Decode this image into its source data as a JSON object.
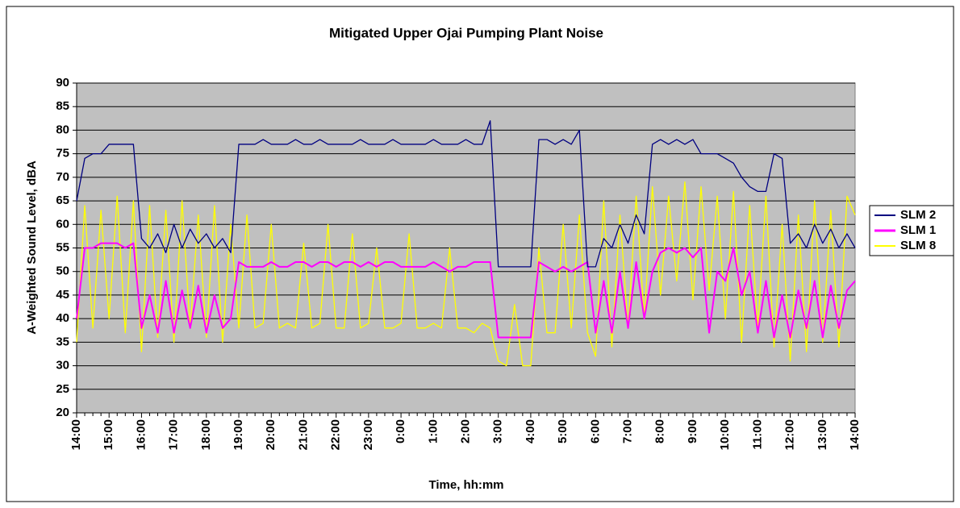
{
  "chart_data": {
    "type": "line",
    "title": "Mitigated Upper Ojai Pumping Plant Noise",
    "x_label": "Time, hh:mm",
    "y_label": "A-Weighted Sound Level, dBA",
    "categories": [
      "14:00",
      null,
      null,
      null,
      "15:00",
      null,
      null,
      null,
      "16:00",
      null,
      null,
      null,
      "17:00",
      null,
      null,
      null,
      "18:00",
      null,
      null,
      null,
      "19:00",
      null,
      null,
      null,
      "20:00",
      null,
      null,
      null,
      "21:00",
      null,
      null,
      null,
      "22:00",
      null,
      null,
      null,
      "23:00",
      null,
      null,
      null,
      "0:00",
      null,
      null,
      null,
      "1:00",
      null,
      null,
      null,
      "2:00",
      null,
      null,
      null,
      "3:00",
      null,
      null,
      null,
      "4:00",
      null,
      null,
      null,
      "5:00",
      null,
      null,
      null,
      "6:00",
      null,
      null,
      null,
      "7:00",
      null,
      null,
      null,
      "8:00",
      null,
      null,
      null,
      "9:00",
      null,
      null,
      null,
      "10:00",
      null,
      null,
      null,
      "11:00",
      null,
      null,
      null,
      "12:00",
      null,
      null,
      null,
      "13:00",
      null,
      null,
      null,
      "14:00"
    ],
    "series": [
      {
        "name": "SLM 2",
        "color": "#000080",
        "values": [
          65,
          74,
          75,
          75,
          77,
          77,
          77,
          77,
          57,
          55,
          58,
          54,
          60,
          55,
          59,
          56,
          58,
          55,
          57,
          54,
          77,
          77,
          77,
          78,
          77,
          77,
          77,
          78,
          77,
          77,
          78,
          77,
          77,
          77,
          77,
          78,
          77,
          77,
          77,
          78,
          77,
          77,
          77,
          77,
          78,
          77,
          77,
          77,
          78,
          77,
          77,
          82,
          51,
          51,
          51,
          51,
          51,
          78,
          78,
          77,
          78,
          77,
          80,
          51,
          51,
          57,
          55,
          60,
          56,
          62,
          58,
          77,
          78,
          77,
          78,
          77,
          78,
          75,
          75,
          75,
          74,
          73,
          70,
          68,
          67,
          67,
          75,
          74,
          56,
          58,
          55,
          60,
          56,
          59,
          55,
          58,
          55
        ]
      },
      {
        "name": "SLM 1",
        "color": "#ff00ff",
        "values": [
          40,
          55,
          55,
          56,
          56,
          56,
          55,
          56,
          38,
          45,
          37,
          48,
          37,
          46,
          38,
          47,
          37,
          45,
          38,
          40,
          52,
          51,
          51,
          51,
          52,
          51,
          51,
          52,
          52,
          51,
          52,
          52,
          51,
          52,
          52,
          51,
          52,
          51,
          52,
          52,
          51,
          51,
          51,
          51,
          52,
          51,
          50,
          51,
          51,
          52,
          52,
          52,
          36,
          36,
          36,
          36,
          36,
          52,
          51,
          50,
          51,
          50,
          51,
          52,
          37,
          48,
          37,
          50,
          38,
          52,
          40,
          50,
          54,
          55,
          54,
          55,
          53,
          55,
          37,
          50,
          48,
          55,
          45,
          50,
          37,
          48,
          36,
          45,
          36,
          46,
          38,
          48,
          36,
          47,
          38,
          46,
          48
        ]
      },
      {
        "name": "SLM 8",
        "color": "#ffff00",
        "values": [
          35,
          64,
          38,
          63,
          40,
          66,
          37,
          65,
          33,
          64,
          36,
          63,
          35,
          65,
          38,
          62,
          36,
          64,
          35,
          60,
          38,
          62,
          38,
          39,
          60,
          38,
          39,
          38,
          56,
          38,
          39,
          60,
          38,
          38,
          58,
          38,
          39,
          55,
          38,
          38,
          39,
          58,
          38,
          38,
          39,
          38,
          55,
          38,
          38,
          37,
          39,
          38,
          31,
          30,
          43,
          30,
          30,
          55,
          37,
          37,
          60,
          38,
          62,
          37,
          32,
          65,
          34,
          62,
          38,
          66,
          40,
          68,
          45,
          66,
          48,
          69,
          44,
          68,
          46,
          66,
          40,
          67,
          35,
          64,
          38,
          66,
          34,
          60,
          31,
          62,
          33,
          65,
          35,
          63,
          34,
          66,
          62
        ]
      }
    ],
    "ylim": [
      20,
      90
    ],
    "yticks": [
      20,
      25,
      30,
      35,
      40,
      45,
      50,
      55,
      60,
      65,
      70,
      75,
      80,
      85,
      90
    ],
    "grid": true,
    "legend": "right",
    "background": "#c0c0c0"
  }
}
